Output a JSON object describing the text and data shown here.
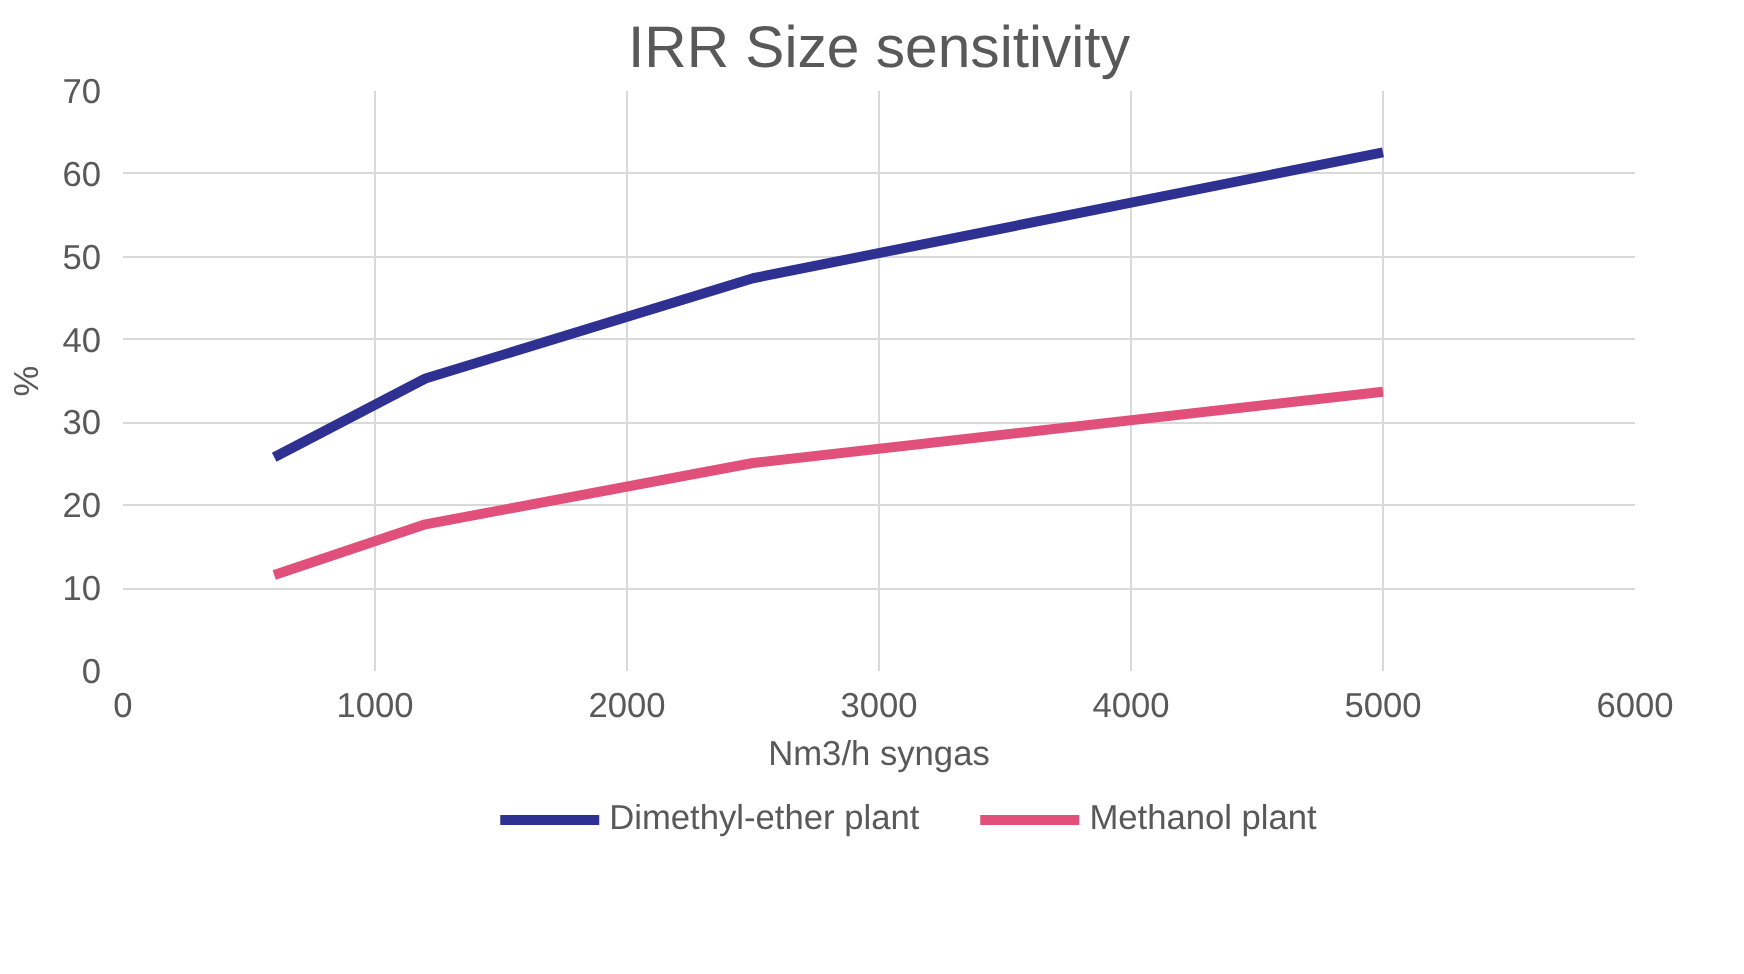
{
  "chart_data": {
    "type": "line",
    "title": "IRR Size sensitivity",
    "xlabel": "Nm3/h syngas",
    "ylabel": "%",
    "x": [
      600,
      1200,
      2500,
      5000
    ],
    "series": [
      {
        "name": "Dimethyl-ether plant",
        "color": "#2e3192",
        "values": [
          25.8,
          35.3,
          47.4,
          62.6
        ]
      },
      {
        "name": "Methanol plant",
        "color": "#e0507a",
        "values": [
          11.6,
          17.7,
          25.1,
          33.7
        ]
      }
    ],
    "xlim": [
      0,
      6000
    ],
    "xticks": [
      0,
      1000,
      2000,
      3000,
      4000,
      5000,
      6000
    ],
    "ylim": [
      0,
      70
    ],
    "yticks": [
      0,
      10,
      20,
      30,
      40,
      50,
      60,
      70
    ],
    "grid": true,
    "legend": "bottom",
    "marker": "none",
    "line_style": "solid"
  }
}
